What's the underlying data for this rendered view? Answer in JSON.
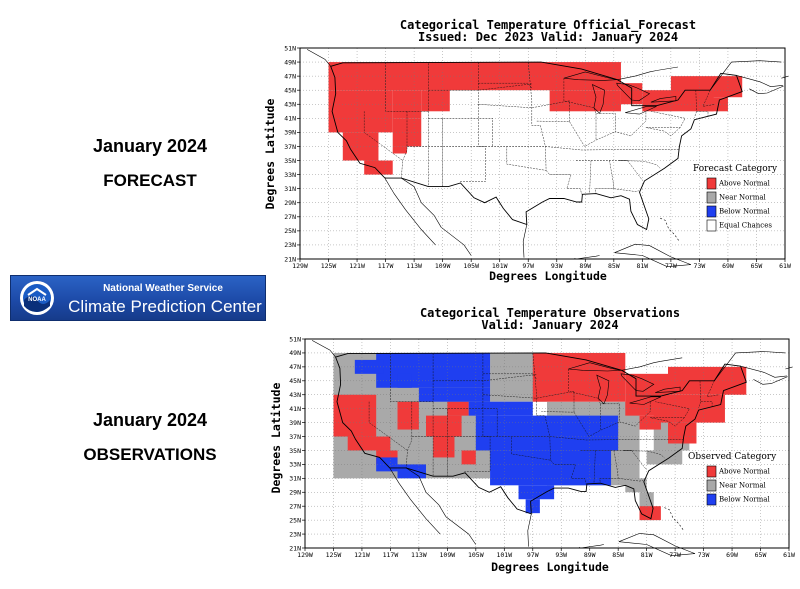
{
  "left_panel": {
    "forecast_label": {
      "line1": "January 2024",
      "line2": "FORECAST"
    },
    "observations_label": {
      "line1": "January 2024",
      "line2": "OBSERVATIONS"
    },
    "banner": {
      "line1": "National Weather Service",
      "line2": "Climate Prediction Center",
      "logo_text": "NOAA",
      "icon": "noaa-logo-icon"
    }
  },
  "colors": {
    "above_normal": "#f03a3a",
    "near_normal": "#a9a9a9",
    "below_normal": "#1f3ff0",
    "equal_chances": "#ffffff",
    "banner": "#1d4aa8"
  },
  "chart_data": [
    {
      "type": "heatmap",
      "title": "Categorical Temperature Official_Forecast",
      "subtitle": "Issued: Dec 2023 Valid: January 2024",
      "xlabel": "Degrees Longitude",
      "ylabel": "Degrees Latitude",
      "x_ticks": [
        "129W",
        "125W",
        "121W",
        "117W",
        "113W",
        "109W",
        "105W",
        "101W",
        "97W",
        "93W",
        "89W",
        "85W",
        "81W",
        "77W",
        "73W",
        "69W",
        "65W",
        "61W"
      ],
      "y_ticks": [
        "21N",
        "23N",
        "25N",
        "27N",
        "29N",
        "31N",
        "33N",
        "35N",
        "37N",
        "39N",
        "41N",
        "43N",
        "45N",
        "47N",
        "49N",
        "51N"
      ],
      "xlim": [
        -129,
        -61
      ],
      "ylim": [
        21,
        51
      ],
      "grid": true,
      "legend_title": "Forecast Category",
      "legend_position": "right",
      "legend": [
        {
          "label": "Above Normal",
          "color": "#f03a3a"
        },
        {
          "label": "Near Normal",
          "color": "#a9a9a9"
        },
        {
          "label": "Below Normal",
          "color": "#1f3ff0"
        },
        {
          "label": "Equal Chances",
          "color": "#ffffff"
        }
      ],
      "cells": [
        {
          "category": "above",
          "lon_range": [
            -125,
            -84
          ],
          "lat_range": [
            45,
            49
          ]
        },
        {
          "category": "above",
          "lon_range": [
            -125,
            -116
          ],
          "lat_range": [
            39,
            45
          ]
        },
        {
          "category": "above",
          "lon_range": [
            -116,
            -112
          ],
          "lat_range": [
            41,
            45
          ]
        },
        {
          "category": "above",
          "lon_range": [
            -112,
            -108
          ],
          "lat_range": [
            42,
            45
          ]
        },
        {
          "category": "above",
          "lon_range": [
            -94,
            -84
          ],
          "lat_range": [
            42,
            45
          ]
        },
        {
          "category": "above",
          "lon_range": [
            -123,
            -118
          ],
          "lat_range": [
            35,
            39
          ]
        },
        {
          "category": "above",
          "lon_range": [
            -120,
            -116
          ],
          "lat_range": [
            33,
            35
          ]
        },
        {
          "category": "above",
          "lon_range": [
            -116,
            -112
          ],
          "lat_range": [
            37,
            41
          ]
        },
        {
          "category": "above",
          "lon_range": [
            -116,
            -114
          ],
          "lat_range": [
            36,
            37
          ]
        },
        {
          "category": "above",
          "lon_range": [
            -84,
            -81
          ],
          "lat_range": [
            43,
            46
          ]
        },
        {
          "category": "above",
          "lon_range": [
            -81,
            -71
          ],
          "lat_range": [
            42,
            45
          ]
        },
        {
          "category": "above",
          "lon_range": [
            -77,
            -67
          ],
          "lat_range": [
            44,
            47
          ]
        },
        {
          "category": "above",
          "lon_range": [
            -73,
            -69
          ],
          "lat_range": [
            42,
            44
          ]
        }
      ]
    },
    {
      "type": "heatmap",
      "title": "Categorical Temperature Observations",
      "subtitle": "Valid: January 2024",
      "xlabel": "Degrees Longitude",
      "ylabel": "Degrees Latitude",
      "x_ticks": [
        "129W",
        "125W",
        "121W",
        "117W",
        "113W",
        "109W",
        "105W",
        "101W",
        "97W",
        "93W",
        "89W",
        "85W",
        "81W",
        "77W",
        "73W",
        "69W",
        "65W",
        "61W"
      ],
      "y_ticks": [
        "21N",
        "23N",
        "25N",
        "27N",
        "29N",
        "31N",
        "33N",
        "35N",
        "37N",
        "39N",
        "41N",
        "43N",
        "45N",
        "47N",
        "49N",
        "51N"
      ],
      "xlim": [
        -129,
        -61
      ],
      "ylim": [
        21,
        51
      ],
      "grid": true,
      "legend_title": "Observed Category",
      "legend_position": "right",
      "legend": [
        {
          "label": "Above Normal",
          "color": "#f03a3a"
        },
        {
          "label": "Near Normal",
          "color": "#a9a9a9"
        },
        {
          "label": "Below Normal",
          "color": "#1f3ff0"
        }
      ],
      "cells": [
        {
          "category": "near",
          "lon_range": [
            -125,
            -103
          ],
          "lat_range": [
            31,
            49
          ]
        },
        {
          "category": "near",
          "lon_range": [
            -103,
            -95
          ],
          "lat_range": [
            42,
            49
          ]
        },
        {
          "category": "near",
          "lon_range": [
            -95,
            -82
          ],
          "lat_range": [
            30,
            42
          ]
        },
        {
          "category": "near",
          "lon_range": [
            -84,
            -81
          ],
          "lat_range": [
            29,
            31
          ]
        },
        {
          "category": "near",
          "lon_range": [
            -82,
            -80
          ],
          "lat_range": [
            25,
            29
          ]
        },
        {
          "category": "near",
          "lon_range": [
            -80,
            -75
          ],
          "lat_range": [
            35,
            39
          ]
        },
        {
          "category": "near",
          "lon_range": [
            -81,
            -76
          ],
          "lat_range": [
            33,
            35
          ]
        },
        {
          "category": "above",
          "lon_range": [
            -97,
            -84
          ],
          "lat_range": [
            42,
            49
          ]
        },
        {
          "category": "above",
          "lon_range": [
            -84,
            -78
          ],
          "lat_range": [
            40,
            46
          ]
        },
        {
          "category": "above",
          "lon_range": [
            -78,
            -67
          ],
          "lat_range": [
            43,
            47
          ]
        },
        {
          "category": "above",
          "lon_range": [
            -80,
            -70
          ],
          "lat_range": [
            39,
            43
          ]
        },
        {
          "category": "above",
          "lon_range": [
            -78,
            -74
          ],
          "lat_range": [
            36,
            39
          ]
        },
        {
          "category": "above",
          "lon_range": [
            -82,
            -79
          ],
          "lat_range": [
            38,
            40
          ]
        },
        {
          "category": "above",
          "lon_range": [
            -125,
            -119
          ],
          "lat_range": [
            37,
            43
          ]
        },
        {
          "category": "above",
          "lon_range": [
            -123,
            -117
          ],
          "lat_range": [
            35,
            37
          ]
        },
        {
          "category": "above",
          "lon_range": [
            -119,
            -116
          ],
          "lat_range": [
            33,
            35
          ]
        },
        {
          "category": "above",
          "lon_range": [
            -116,
            -113
          ],
          "lat_range": [
            38,
            42
          ]
        },
        {
          "category": "above",
          "lon_range": [
            -112,
            -107
          ],
          "lat_range": [
            37,
            40
          ]
        },
        {
          "category": "above",
          "lon_range": [
            -109,
            -106
          ],
          "lat_range": [
            40,
            42
          ]
        },
        {
          "category": "above",
          "lon_range": [
            -111,
            -108
          ],
          "lat_range": [
            34,
            37
          ]
        },
        {
          "category": "above",
          "lon_range": [
            -107,
            -105
          ],
          "lat_range": [
            33,
            35
          ]
        },
        {
          "category": "above",
          "lon_range": [
            -82,
            -79
          ],
          "lat_range": [
            25,
            27
          ]
        },
        {
          "category": "below",
          "lon_range": [
            -119,
            -103
          ],
          "lat_range": [
            44,
            49
          ]
        },
        {
          "category": "below",
          "lon_range": [
            -113,
            -103
          ],
          "lat_range": [
            42,
            44
          ]
        },
        {
          "category": "below",
          "lon_range": [
            -106,
            -97
          ],
          "lat_range": [
            40,
            42
          ]
        },
        {
          "category": "below",
          "lon_range": [
            -105,
            -85
          ],
          "lat_range": [
            35,
            40
          ]
        },
        {
          "category": "below",
          "lon_range": [
            -103,
            -86
          ],
          "lat_range": [
            30,
            35
          ]
        },
        {
          "category": "below",
          "lon_range": [
            -99,
            -94
          ],
          "lat_range": [
            28,
            30
          ]
        },
        {
          "category": "below",
          "lon_range": [
            -98,
            -96
          ],
          "lat_range": [
            26,
            28
          ]
        },
        {
          "category": "below",
          "lon_range": [
            -119,
            -116
          ],
          "lat_range": [
            32,
            34
          ]
        },
        {
          "category": "below",
          "lon_range": [
            -116,
            -112
          ],
          "lat_range": [
            31,
            33
          ]
        },
        {
          "category": "below",
          "lon_range": [
            -122,
            -118
          ],
          "lat_range": [
            46,
            48
          ]
        },
        {
          "category": "below",
          "lon_range": [
            -116,
            -114
          ],
          "lat_range": [
            44,
            46
          ]
        }
      ]
    }
  ]
}
